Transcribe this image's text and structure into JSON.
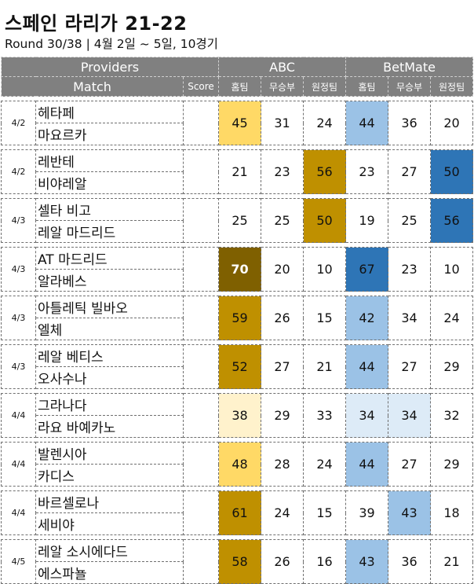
{
  "title": "스페인 라리가 21-22",
  "subtitle": "Round 30/38 | 4월 2일 ~ 5일, 10경기",
  "header": {
    "providers": "Providers",
    "match": "Match",
    "score": "Score",
    "provider_names": [
      "ABC",
      "BetMate"
    ],
    "outcomes": [
      "홈팀",
      "무승부",
      "원정팀"
    ]
  },
  "colors": {
    "header_bg": "#808080",
    "gold_light": "#fff2cc",
    "gold_mid": "#ffd966",
    "gold_dark": "#bf9000",
    "gold_darkest": "#7f6000",
    "blue_light": "#ddebf7",
    "blue_mid": "#9bc2e6",
    "blue_dark": "#2e75b6"
  },
  "matches": [
    {
      "date": "4/2",
      "home": "헤타페",
      "away": "마요르카",
      "score": "",
      "abc": [
        45,
        31,
        24
      ],
      "bm": [
        44,
        36,
        20
      ],
      "abc_bg": [
        "#ffd966",
        null,
        null
      ],
      "bm_bg": [
        "#9bc2e6",
        null,
        null
      ]
    },
    {
      "date": "4/2",
      "home": "레반테",
      "away": "비야레알",
      "score": "",
      "abc": [
        21,
        23,
        56
      ],
      "bm": [
        23,
        27,
        50
      ],
      "abc_bg": [
        null,
        null,
        "#bf9000"
      ],
      "bm_bg": [
        null,
        null,
        "#2e75b6"
      ]
    },
    {
      "date": "4/3",
      "home": "셀타 비고",
      "away": "레알 마드리드",
      "score": "",
      "abc": [
        25,
        25,
        50
      ],
      "bm": [
        19,
        25,
        56
      ],
      "abc_bg": [
        null,
        null,
        "#bf9000"
      ],
      "bm_bg": [
        null,
        null,
        "#2e75b6"
      ]
    },
    {
      "date": "4/3",
      "home": "AT 마드리드",
      "away": "알라베스",
      "score": "",
      "abc": [
        70,
        20,
        10
      ],
      "bm": [
        67,
        23,
        10
      ],
      "abc_bg": [
        "#7f6000",
        null,
        null
      ],
      "bm_bg": [
        "#2e75b6",
        null,
        null
      ]
    },
    {
      "date": "4/3",
      "home": "아틀레틱 빌바오",
      "away": "엘체",
      "score": "",
      "abc": [
        59,
        26,
        15
      ],
      "bm": [
        42,
        34,
        24
      ],
      "abc_bg": [
        "#bf9000",
        null,
        null
      ],
      "bm_bg": [
        "#9bc2e6",
        null,
        null
      ]
    },
    {
      "date": "4/3",
      "home": "레알 베티스",
      "away": "오사수나",
      "score": "",
      "abc": [
        52,
        27,
        21
      ],
      "bm": [
        44,
        27,
        29
      ],
      "abc_bg": [
        "#bf9000",
        null,
        null
      ],
      "bm_bg": [
        "#9bc2e6",
        null,
        null
      ]
    },
    {
      "date": "4/4",
      "home": "그라나다",
      "away": "라요 바예카노",
      "score": "",
      "abc": [
        38,
        29,
        33
      ],
      "bm": [
        34,
        34,
        32
      ],
      "abc_bg": [
        "#fff2cc",
        null,
        null
      ],
      "bm_bg": [
        "#ddebf7",
        "#ddebf7",
        null
      ]
    },
    {
      "date": "4/4",
      "home": "발렌시아",
      "away": "카디스",
      "score": "",
      "abc": [
        48,
        28,
        24
      ],
      "bm": [
        44,
        27,
        29
      ],
      "abc_bg": [
        "#ffd966",
        null,
        null
      ],
      "bm_bg": [
        "#9bc2e6",
        null,
        null
      ]
    },
    {
      "date": "4/4",
      "home": "바르셀로나",
      "away": "세비야",
      "score": "",
      "abc": [
        61,
        24,
        15
      ],
      "bm": [
        39,
        43,
        18
      ],
      "abc_bg": [
        "#bf9000",
        null,
        null
      ],
      "bm_bg": [
        null,
        "#9bc2e6",
        null
      ]
    },
    {
      "date": "4/5",
      "home": "레알 소시에다드",
      "away": "에스파뇰",
      "score": "",
      "abc": [
        58,
        26,
        16
      ],
      "bm": [
        43,
        36,
        21
      ],
      "abc_bg": [
        "#bf9000",
        null,
        null
      ],
      "bm_bg": [
        "#9bc2e6",
        null,
        null
      ]
    }
  ]
}
